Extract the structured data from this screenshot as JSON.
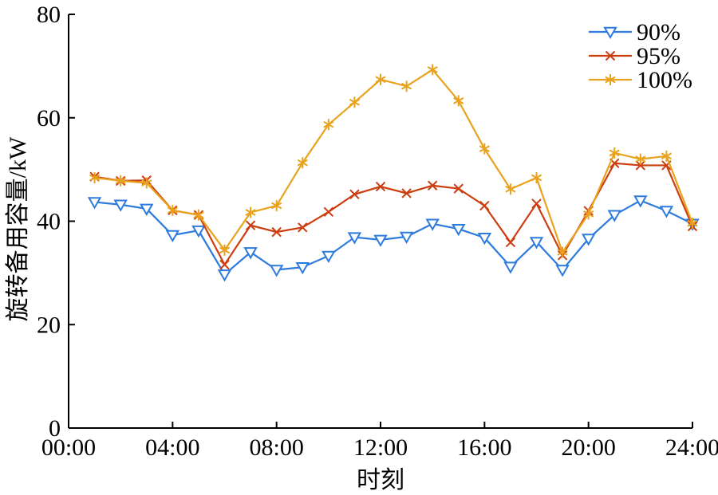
{
  "chart_data": {
    "type": "line",
    "xlabel": "时刻",
    "ylabel": "旋转备用容量/kW",
    "xlim": [
      0,
      24
    ],
    "ylim": [
      0,
      80
    ],
    "x_ticks": [
      0,
      4,
      8,
      12,
      16,
      20,
      24
    ],
    "x_tick_labels": [
      "00:00",
      "04:00",
      "08:00",
      "12:00",
      "16:00",
      "20:00",
      "24:00"
    ],
    "y_ticks": [
      0,
      20,
      40,
      60,
      80
    ],
    "y_tick_labels": [
      "0",
      "20",
      "40",
      "60",
      "80"
    ],
    "grid": false,
    "legend_position": "top-right",
    "x": [
      1,
      2,
      3,
      4,
      5,
      6,
      7,
      8,
      9,
      10,
      11,
      12,
      13,
      14,
      15,
      16,
      17,
      18,
      19,
      20,
      21,
      22,
      23,
      24
    ],
    "series": [
      {
        "name": "90%",
        "color": "#2d7bdc",
        "marker": "triangle-down",
        "values": [
          43.7,
          43.2,
          42.4,
          37.3,
          38.2,
          29.7,
          34.0,
          30.6,
          31.1,
          33.3,
          36.9,
          36.4,
          37.0,
          39.5,
          38.5,
          36.8,
          31.2,
          36.0,
          30.6,
          36.6,
          41.2,
          44.0,
          42.0,
          39.5
        ]
      },
      {
        "name": "95%",
        "color": "#cc3d0f",
        "marker": "x",
        "values": [
          48.6,
          47.8,
          47.9,
          42.1,
          41.2,
          31.6,
          39.2,
          37.9,
          38.8,
          41.8,
          45.2,
          46.7,
          45.4,
          46.9,
          46.3,
          43.0,
          35.9,
          43.4,
          33.4,
          42.0,
          51.2,
          50.8,
          50.8,
          39.0
        ]
      },
      {
        "name": "100%",
        "color": "#e8a21d",
        "marker": "asterisk",
        "values": [
          48.4,
          47.8,
          47.4,
          42.1,
          41.2,
          34.4,
          41.7,
          43.0,
          51.3,
          58.7,
          63.0,
          67.4,
          66.1,
          69.3,
          63.3,
          54.0,
          46.2,
          48.4,
          34.0,
          41.4,
          53.2,
          52.0,
          52.6,
          39.6
        ]
      }
    ]
  }
}
